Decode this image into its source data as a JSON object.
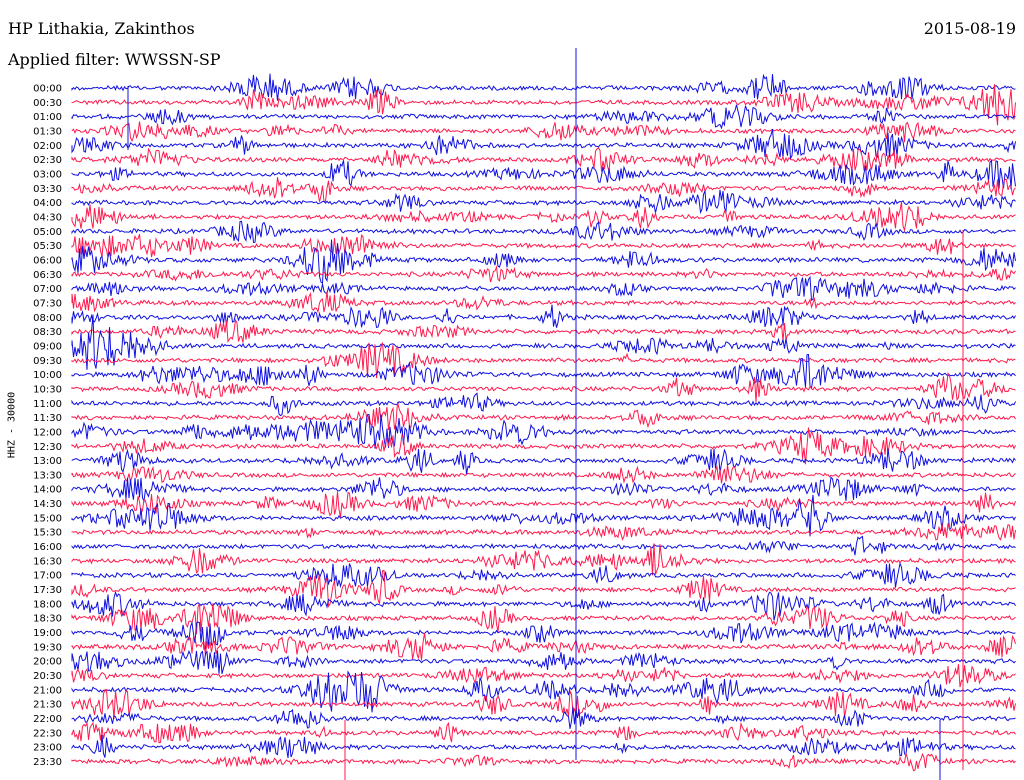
{
  "header": {
    "station": "HP Lithakia, Zakinthos",
    "date": "2015-08-19",
    "filter": "Applied filter: WWSSN-SP"
  },
  "chart_data": {
    "type": "line",
    "title": "HP Lithakia, Zakinthos",
    "ylabel": "HHZ - 30000",
    "y_tick_labels": [
      "00:00",
      "00:30",
      "01:00",
      "01:30",
      "02:00",
      "02:30",
      "03:00",
      "03:30",
      "04:00",
      "04:30",
      "05:00",
      "05:30",
      "06:00",
      "06:30",
      "07:00",
      "07:30",
      "08:00",
      "08:30",
      "09:00",
      "09:30",
      "10:00",
      "10:30",
      "11:00",
      "11:30",
      "12:00",
      "12:30",
      "13:00",
      "13:30",
      "14:00",
      "14:30",
      "15:00",
      "15:30",
      "16:00",
      "16:30",
      "17:00",
      "17:30",
      "18:00",
      "18:30",
      "19:00",
      "19:30",
      "20:00",
      "20:30",
      "21:00",
      "21:30",
      "22:00",
      "22:30",
      "23:00",
      "23:30"
    ],
    "trace_colors": [
      "#1010e0",
      "#ff1a4d"
    ],
    "row_minutes": 30,
    "trace_count": 48,
    "grid": false
  }
}
